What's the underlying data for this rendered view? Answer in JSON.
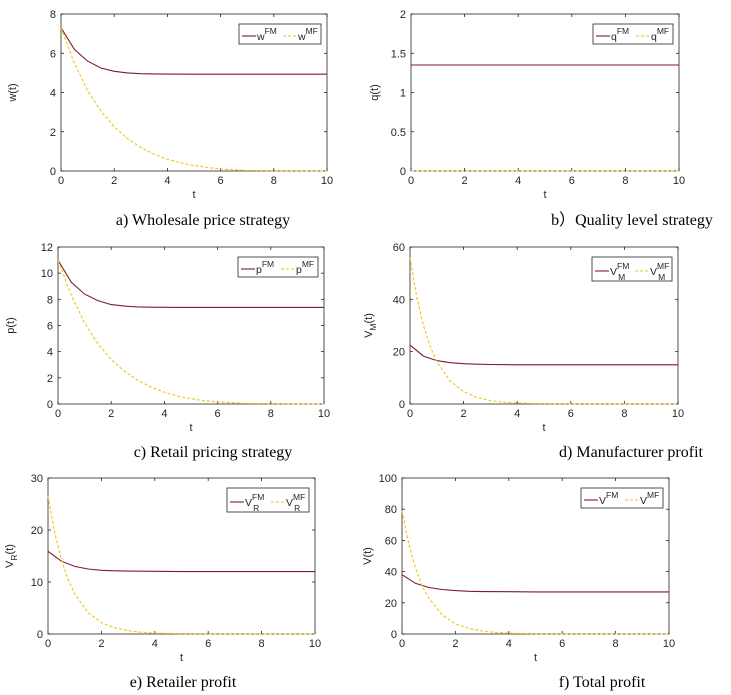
{
  "colors": {
    "fm": "#7e1a2f",
    "mf": "#f2c318",
    "axis": "#262626"
  },
  "chart_data": [
    {
      "type": "line",
      "caption": "a) Wholesale price strategy",
      "xlabel": "t",
      "ylabel": {
        "base": "w(t)",
        "sub": ""
      },
      "xlim": [
        0,
        10
      ],
      "ylim": [
        0,
        8
      ],
      "xticks": [
        0,
        2,
        4,
        6,
        8,
        10
      ],
      "yticks": [
        0,
        2,
        4,
        6,
        8
      ],
      "legend_position": "top-right",
      "series": [
        {
          "name": {
            "base": "w",
            "sup": "FM",
            "sub": ""
          },
          "style": "solid",
          "x": [
            0,
            0.5,
            1,
            1.5,
            2,
            2.5,
            3,
            3.5,
            4,
            5,
            6,
            7,
            8,
            9,
            10
          ],
          "y": [
            7.3,
            6.2,
            5.6,
            5.25,
            5.08,
            5.0,
            4.96,
            4.95,
            4.94,
            4.93,
            4.93,
            4.93,
            4.93,
            4.93,
            4.93
          ]
        },
        {
          "name": {
            "base": "w",
            "sup": "MF",
            "sub": ""
          },
          "style": "dashed",
          "x": [
            0,
            0.5,
            1,
            1.5,
            2,
            2.5,
            3,
            3.5,
            4,
            4.5,
            5,
            5.5,
            6,
            7,
            8,
            9,
            10
          ],
          "y": [
            7.3,
            5.5,
            4.1,
            3.05,
            2.25,
            1.65,
            1.2,
            0.85,
            0.6,
            0.42,
            0.28,
            0.18,
            0.1,
            0.03,
            0.01,
            0,
            0
          ]
        }
      ]
    },
    {
      "type": "line",
      "caption": "b）Quality level strategy",
      "xlabel": "t",
      "ylabel": {
        "base": "q(t)",
        "sub": ""
      },
      "xlim": [
        0,
        10
      ],
      "ylim": [
        0,
        2
      ],
      "xticks": [
        0,
        2,
        4,
        6,
        8,
        10
      ],
      "yticks": [
        0,
        0.5,
        1,
        1.5,
        2
      ],
      "legend_position": "top-right",
      "series": [
        {
          "name": {
            "base": "q",
            "sup": "FM",
            "sub": ""
          },
          "style": "solid",
          "x": [
            0,
            10
          ],
          "y": [
            1.35,
            1.35
          ]
        },
        {
          "name": {
            "base": "q",
            "sup": "MF",
            "sub": ""
          },
          "style": "dashed",
          "x": [
            0,
            10
          ],
          "y": [
            0,
            0
          ]
        }
      ]
    },
    {
      "type": "line",
      "caption": "c) Retail pricing strategy",
      "xlabel": "t",
      "ylabel": {
        "base": "p(t)",
        "sub": ""
      },
      "xlim": [
        0,
        10
      ],
      "ylim": [
        0,
        12
      ],
      "xticks": [
        0,
        2,
        4,
        6,
        8,
        10
      ],
      "yticks": [
        0,
        2,
        4,
        6,
        8,
        10,
        12
      ],
      "legend_position": "top-right",
      "series": [
        {
          "name": {
            "base": "p",
            "sup": "FM",
            "sub": ""
          },
          "style": "solid",
          "x": [
            0,
            0.5,
            1,
            1.5,
            2,
            2.5,
            3,
            3.5,
            4,
            5,
            6,
            7,
            8,
            9,
            10
          ],
          "y": [
            11.0,
            9.3,
            8.4,
            7.9,
            7.6,
            7.48,
            7.42,
            7.4,
            7.39,
            7.38,
            7.38,
            7.38,
            7.38,
            7.38,
            7.38
          ]
        },
        {
          "name": {
            "base": "p",
            "sup": "MF",
            "sub": ""
          },
          "style": "dashed",
          "x": [
            0,
            0.5,
            1,
            1.5,
            2,
            2.5,
            3,
            3.5,
            4,
            4.5,
            5,
            5.5,
            6,
            7,
            8,
            9,
            10
          ],
          "y": [
            11.0,
            8.3,
            6.2,
            4.6,
            3.4,
            2.5,
            1.8,
            1.3,
            0.9,
            0.6,
            0.4,
            0.25,
            0.15,
            0.05,
            0.02,
            0,
            0
          ]
        }
      ]
    },
    {
      "type": "line",
      "caption": "d) Manufacturer profit",
      "xlabel": "t",
      "ylabel": {
        "base": "V",
        "sub": "M",
        "tail": "(t)"
      },
      "xlim": [
        0,
        10
      ],
      "ylim": [
        0,
        60
      ],
      "xticks": [
        0,
        2,
        4,
        6,
        8,
        10
      ],
      "yticks": [
        0,
        20,
        40,
        60
      ],
      "legend_position": "top-right",
      "series": [
        {
          "name": {
            "base": "V",
            "sup": "FM",
            "sub": "M"
          },
          "style": "solid",
          "x": [
            0,
            0.5,
            1,
            1.5,
            2,
            2.5,
            3,
            4,
            5,
            6,
            7,
            8,
            9,
            10
          ],
          "y": [
            22.5,
            18.3,
            16.6,
            15.8,
            15.4,
            15.2,
            15.1,
            15.0,
            15.0,
            15.0,
            15.0,
            15.0,
            15.0,
            15.0
          ]
        },
        {
          "name": {
            "base": "V",
            "sup": "MF",
            "sub": "M"
          },
          "style": "dashed",
          "x": [
            0,
            0.25,
            0.5,
            0.75,
            1,
            1.5,
            2,
            2.5,
            3,
            3.5,
            4,
            5,
            6,
            8,
            10
          ],
          "y": [
            56,
            41,
            30,
            22,
            16.2,
            8.7,
            4.7,
            2.5,
            1.35,
            0.7,
            0.38,
            0.1,
            0.03,
            0,
            0
          ]
        }
      ]
    },
    {
      "type": "line",
      "caption": "e) Retailer profit",
      "xlabel": "t",
      "ylabel": {
        "base": "V",
        "sub": "R",
        "tail": "(t)"
      },
      "xlim": [
        0,
        10
      ],
      "ylim": [
        0,
        30
      ],
      "xticks": [
        0,
        2,
        4,
        6,
        8,
        10
      ],
      "yticks": [
        0,
        10,
        20,
        30
      ],
      "legend_position": "top-right",
      "series": [
        {
          "name": {
            "base": "V",
            "sup": "FM",
            "sub": "R"
          },
          "style": "solid",
          "x": [
            0,
            0.5,
            1,
            1.5,
            2,
            2.5,
            3,
            4,
            5,
            6,
            7,
            8,
            9,
            10
          ],
          "y": [
            15.9,
            14.0,
            13.0,
            12.5,
            12.25,
            12.15,
            12.1,
            12.05,
            12.0,
            12.0,
            12.0,
            12.0,
            12.0,
            12.0
          ]
        },
        {
          "name": {
            "base": "V",
            "sup": "MF",
            "sub": "R"
          },
          "style": "dashed",
          "x": [
            0,
            0.25,
            0.5,
            0.75,
            1,
            1.5,
            2,
            2.5,
            3,
            3.5,
            4,
            5,
            6,
            8,
            10
          ],
          "y": [
            26.5,
            19.5,
            14.3,
            10.5,
            7.7,
            4.15,
            2.2,
            1.2,
            0.63,
            0.34,
            0.18,
            0.05,
            0.01,
            0,
            0
          ]
        }
      ]
    },
    {
      "type": "line",
      "caption": "f) Total profit",
      "xlabel": "t",
      "ylabel": {
        "base": "V(t)",
        "sub": ""
      },
      "xlim": [
        0,
        10
      ],
      "ylim": [
        0,
        100
      ],
      "xticks": [
        0,
        2,
        4,
        6,
        8,
        10
      ],
      "yticks": [
        0,
        20,
        40,
        60,
        80,
        100
      ],
      "legend_position": "top-right",
      "series": [
        {
          "name": {
            "base": "V",
            "sup": "FM",
            "sub": ""
          },
          "style": "solid",
          "x": [
            0,
            0.5,
            1,
            1.5,
            2,
            2.5,
            3,
            4,
            5,
            6,
            7,
            8,
            9,
            10
          ],
          "y": [
            38,
            32.5,
            29.8,
            28.5,
            27.8,
            27.4,
            27.2,
            27.1,
            27.0,
            27.0,
            27.0,
            27.0,
            27.0,
            27.0
          ]
        },
        {
          "name": {
            "base": "V",
            "sup": "MF",
            "sub": ""
          },
          "style": "dashed",
          "x": [
            0,
            0.25,
            0.5,
            0.75,
            1,
            1.5,
            2,
            2.5,
            3,
            3.5,
            4,
            5,
            6,
            8,
            10
          ],
          "y": [
            79,
            58,
            42.5,
            31,
            23,
            12.3,
            6.6,
            3.5,
            1.9,
            1.0,
            0.53,
            0.15,
            0.04,
            0,
            0
          ]
        }
      ]
    }
  ]
}
